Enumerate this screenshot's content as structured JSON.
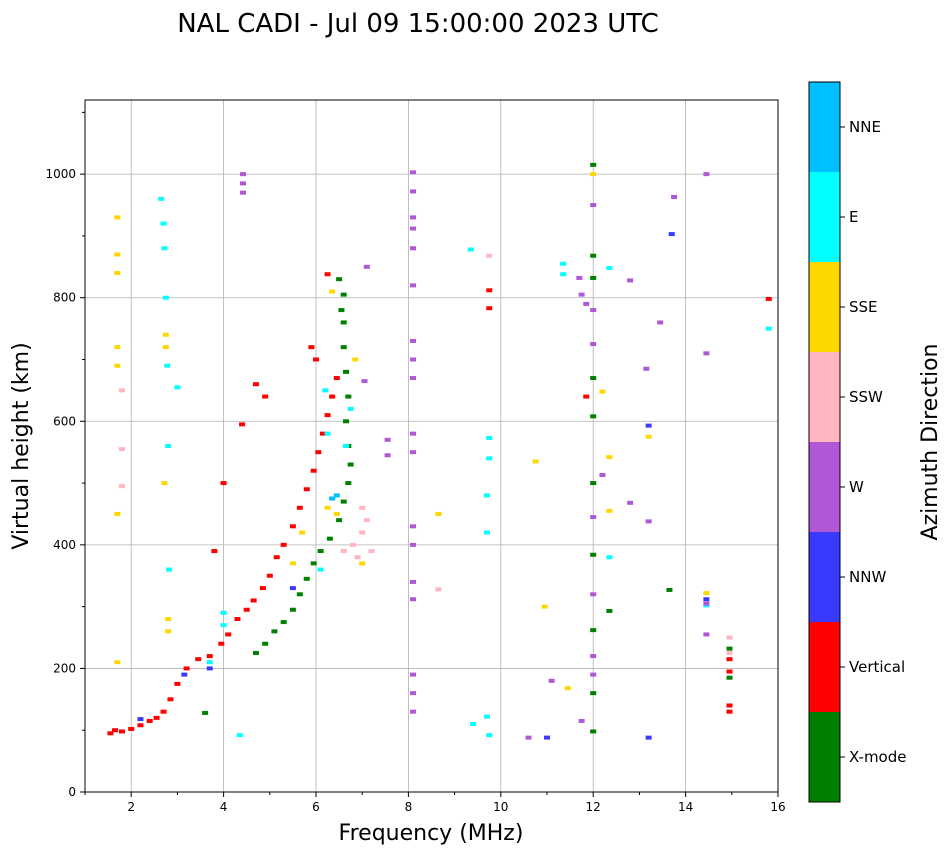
{
  "chart_data": {
    "type": "scatter",
    "title": "NAL CADI - Jul 09 15:00:00 2023 UTC",
    "xlabel": "Frequency (MHz)",
    "ylabel": "Virtual height (km)",
    "xlim": [
      1,
      16
    ],
    "ylim": [
      0,
      1120
    ],
    "xticks": [
      2,
      4,
      6,
      8,
      10,
      12,
      14,
      16
    ],
    "yticks": [
      0,
      200,
      400,
      600,
      800,
      1000
    ],
    "grid": true,
    "colorbar": {
      "title": "Azimuth Direction",
      "categories": [
        {
          "name": "X-mode",
          "color": "#008000"
        },
        {
          "name": "Vertical",
          "color": "#ff0000"
        },
        {
          "name": "NNW",
          "color": "#3a3aff"
        },
        {
          "name": "W",
          "color": "#b057d6"
        },
        {
          "name": "SSW",
          "color": "#ffb6c1"
        },
        {
          "name": "SSE",
          "color": "#ffd700"
        },
        {
          "name": "E",
          "color": "#00ffff"
        },
        {
          "name": "NNE",
          "color": "#00bfff"
        }
      ]
    },
    "series": [
      {
        "name": "Vertical",
        "points": [
          [
            1.55,
            95
          ],
          [
            1.65,
            100
          ],
          [
            1.8,
            98
          ],
          [
            2.0,
            102
          ],
          [
            2.2,
            108
          ],
          [
            2.4,
            115
          ],
          [
            2.55,
            120
          ],
          [
            2.7,
            130
          ],
          [
            2.85,
            150
          ],
          [
            3.0,
            175
          ],
          [
            3.2,
            200
          ],
          [
            3.45,
            215
          ],
          [
            3.7,
            220
          ],
          [
            3.95,
            240
          ],
          [
            4.1,
            255
          ],
          [
            4.3,
            280
          ],
          [
            4.5,
            295
          ],
          [
            4.65,
            310
          ],
          [
            4.85,
            330
          ],
          [
            5.0,
            350
          ],
          [
            5.15,
            380
          ],
          [
            5.3,
            400
          ],
          [
            5.5,
            430
          ],
          [
            5.65,
            460
          ],
          [
            5.8,
            490
          ],
          [
            5.95,
            520
          ],
          [
            6.05,
            550
          ],
          [
            6.15,
            580
          ],
          [
            6.25,
            610
          ],
          [
            6.35,
            640
          ],
          [
            6.45,
            670
          ],
          [
            6.0,
            700
          ],
          [
            5.9,
            720
          ],
          [
            6.25,
            838
          ],
          [
            4.0,
            500
          ],
          [
            4.4,
            595
          ],
          [
            4.7,
            660
          ],
          [
            4.9,
            640
          ],
          [
            3.8,
            390
          ],
          [
            9.75,
            812
          ],
          [
            9.75,
            783
          ],
          [
            11.85,
            640
          ],
          [
            14.95,
            130
          ],
          [
            14.95,
            140
          ],
          [
            14.95,
            195
          ],
          [
            14.95,
            215
          ],
          [
            15.8,
            798
          ]
        ]
      },
      {
        "name": "X-mode",
        "points": [
          [
            4.7,
            225
          ],
          [
            4.9,
            240
          ],
          [
            5.1,
            260
          ],
          [
            5.3,
            275
          ],
          [
            5.5,
            295
          ],
          [
            5.65,
            320
          ],
          [
            5.8,
            345
          ],
          [
            5.95,
            370
          ],
          [
            6.1,
            390
          ],
          [
            6.3,
            410
          ],
          [
            6.5,
            440
          ],
          [
            6.6,
            470
          ],
          [
            6.7,
            500
          ],
          [
            6.75,
            530
          ],
          [
            6.7,
            560
          ],
          [
            6.65,
            600
          ],
          [
            6.7,
            640
          ],
          [
            6.65,
            680
          ],
          [
            6.6,
            720
          ],
          [
            6.6,
            760
          ],
          [
            6.55,
            780
          ],
          [
            6.5,
            830
          ],
          [
            6.6,
            805
          ],
          [
            3.6,
            128
          ],
          [
            12.0,
            1015
          ],
          [
            12.0,
            868
          ],
          [
            12.0,
            832
          ],
          [
            12.0,
            670
          ],
          [
            12.0,
            608
          ],
          [
            12.0,
            500
          ],
          [
            12.0,
            384
          ],
          [
            12.0,
            262
          ],
          [
            12.0,
            160
          ],
          [
            12.0,
            98
          ],
          [
            12.35,
            293
          ],
          [
            13.65,
            327
          ],
          [
            14.95,
            185
          ],
          [
            14.95,
            232
          ]
        ]
      },
      {
        "name": "NNE",
        "points": [
          [
            6.35,
            475
          ],
          [
            6.45,
            480
          ]
        ]
      },
      {
        "name": "E",
        "points": [
          [
            2.65,
            960
          ],
          [
            2.7,
            920
          ],
          [
            2.72,
            880
          ],
          [
            2.75,
            800
          ],
          [
            2.78,
            690
          ],
          [
            2.8,
            560
          ],
          [
            2.82,
            360
          ],
          [
            3.0,
            655
          ],
          [
            4.35,
            92
          ],
          [
            6.2,
            650
          ],
          [
            6.25,
            580
          ],
          [
            6.1,
            360
          ],
          [
            6.75,
            620
          ],
          [
            6.65,
            560
          ],
          [
            9.35,
            878
          ],
          [
            9.75,
            573
          ],
          [
            9.75,
            540
          ],
          [
            9.7,
            480
          ],
          [
            9.7,
            420
          ],
          [
            9.4,
            110
          ],
          [
            9.7,
            122
          ],
          [
            9.75,
            92
          ],
          [
            11.35,
            855
          ],
          [
            12.35,
            848
          ],
          [
            11.35,
            838
          ],
          [
            12.35,
            380
          ],
          [
            14.45,
            302
          ],
          [
            15.8,
            750
          ],
          [
            4.0,
            290
          ],
          [
            4.0,
            270
          ],
          [
            3.7,
            210
          ]
        ]
      },
      {
        "name": "SSE",
        "points": [
          [
            1.7,
            930
          ],
          [
            1.7,
            870
          ],
          [
            1.7,
            840
          ],
          [
            1.7,
            720
          ],
          [
            1.7,
            690
          ],
          [
            1.7,
            450
          ],
          [
            1.7,
            210
          ],
          [
            2.75,
            740
          ],
          [
            2.75,
            720
          ],
          [
            2.72,
            500
          ],
          [
            2.8,
            280
          ],
          [
            2.8,
            260
          ],
          [
            6.35,
            810
          ],
          [
            6.85,
            700
          ],
          [
            7.0,
            370
          ],
          [
            5.7,
            420
          ],
          [
            5.5,
            370
          ],
          [
            6.25,
            460
          ],
          [
            6.45,
            450
          ],
          [
            8.65,
            450
          ],
          [
            10.75,
            535
          ],
          [
            10.95,
            300
          ],
          [
            11.45,
            168
          ],
          [
            12.2,
            648
          ],
          [
            12.35,
            542
          ],
          [
            12.35,
            455
          ],
          [
            13.2,
            575
          ],
          [
            14.45,
            322
          ],
          [
            12.0,
            1000
          ]
        ]
      },
      {
        "name": "SSW",
        "points": [
          [
            1.8,
            650
          ],
          [
            1.8,
            555
          ],
          [
            1.8,
            495
          ],
          [
            6.6,
            390
          ],
          [
            6.8,
            400
          ],
          [
            7.0,
            420
          ],
          [
            7.1,
            440
          ],
          [
            7.0,
            460
          ],
          [
            6.9,
            380
          ],
          [
            7.2,
            390
          ],
          [
            8.65,
            328
          ],
          [
            9.75,
            868
          ],
          [
            14.95,
            250
          ],
          [
            14.95,
            225
          ]
        ]
      },
      {
        "name": "W",
        "points": [
          [
            4.42,
            1000
          ],
          [
            4.42,
            985
          ],
          [
            4.42,
            970
          ],
          [
            7.55,
            570
          ],
          [
            7.55,
            545
          ],
          [
            8.1,
            1003
          ],
          [
            8.1,
            972
          ],
          [
            8.1,
            930
          ],
          [
            8.1,
            912
          ],
          [
            8.1,
            880
          ],
          [
            8.1,
            820
          ],
          [
            8.1,
            730
          ],
          [
            8.1,
            700
          ],
          [
            8.1,
            670
          ],
          [
            8.1,
            580
          ],
          [
            8.1,
            550
          ],
          [
            8.1,
            430
          ],
          [
            8.1,
            400
          ],
          [
            8.1,
            340
          ],
          [
            8.1,
            312
          ],
          [
            8.1,
            190
          ],
          [
            8.1,
            160
          ],
          [
            8.1,
            130
          ],
          [
            7.1,
            850
          ],
          [
            7.05,
            665
          ],
          [
            10.6,
            88
          ],
          [
            11.1,
            180
          ],
          [
            11.7,
            832
          ],
          [
            11.75,
            805
          ],
          [
            11.85,
            790
          ],
          [
            11.75,
            115
          ],
          [
            12.0,
            950
          ],
          [
            12.0,
            780
          ],
          [
            12.0,
            725
          ],
          [
            12.0,
            445
          ],
          [
            12.0,
            320
          ],
          [
            12.0,
            220
          ],
          [
            12.0,
            190
          ],
          [
            12.8,
            828
          ],
          [
            12.8,
            468
          ],
          [
            13.15,
            685
          ],
          [
            13.2,
            438
          ],
          [
            13.45,
            760
          ],
          [
            13.75,
            963
          ],
          [
            14.45,
            710
          ],
          [
            14.45,
            1000
          ],
          [
            14.45,
            255
          ],
          [
            14.45,
            305
          ],
          [
            12.2,
            513
          ]
        ]
      },
      {
        "name": "NNW",
        "points": [
          [
            11.0,
            88
          ],
          [
            13.7,
            903
          ],
          [
            13.2,
            593
          ],
          [
            13.2,
            88
          ],
          [
            14.45,
            312
          ],
          [
            2.2,
            118
          ],
          [
            3.15,
            190
          ],
          [
            3.7,
            200
          ],
          [
            5.5,
            330
          ]
        ]
      }
    ]
  }
}
